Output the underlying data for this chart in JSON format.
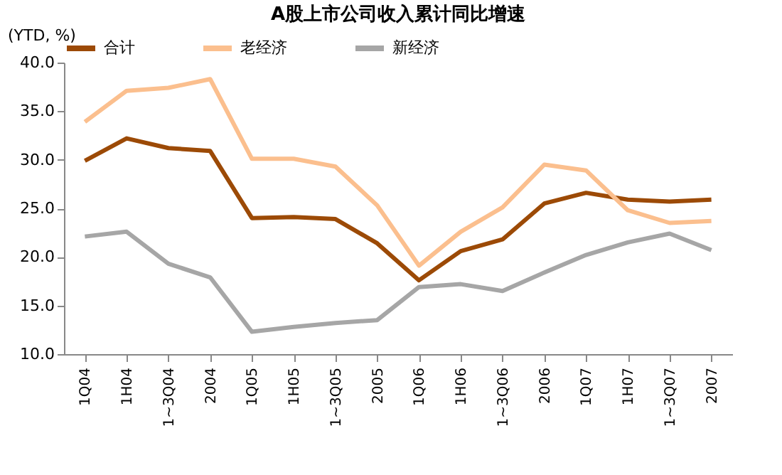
{
  "chart_data": {
    "type": "line",
    "title": "A股上市公司收入累计同比增速",
    "ylabel": "(YTD, %)",
    "categories": [
      "1Q04",
      "1H04",
      "1~3Q04",
      "2004",
      "1Q05",
      "1H05",
      "1~3Q05",
      "2005",
      "1Q06",
      "1H06",
      "1~3Q06",
      "2006",
      "1Q07",
      "1H07",
      "1~3Q07",
      "2007"
    ],
    "series": [
      {
        "name": "合计",
        "color": "#9c4a06",
        "values": [
          29.9,
          32.2,
          31.2,
          30.9,
          24.0,
          24.1,
          23.9,
          21.4,
          17.6,
          20.6,
          21.8,
          25.5,
          26.6,
          25.9,
          25.7,
          25.9
        ]
      },
      {
        "name": "老经济",
        "color": "#fbbf8e",
        "values": [
          33.9,
          37.1,
          37.4,
          38.3,
          30.1,
          30.1,
          29.3,
          25.3,
          19.1,
          22.6,
          25.1,
          29.5,
          28.9,
          24.8,
          23.5,
          23.7
        ]
      },
      {
        "name": "新经济",
        "color": "#a6a6a6",
        "values": [
          22.1,
          22.6,
          19.3,
          17.9,
          12.3,
          12.8,
          13.2,
          13.5,
          16.9,
          17.2,
          16.5,
          18.4,
          20.2,
          21.5,
          22.4,
          20.7
        ]
      }
    ],
    "ylim": [
      10,
      40
    ],
    "yticks": [
      {
        "value": 10,
        "label": "10.0"
      },
      {
        "value": 15,
        "label": "15.0"
      },
      {
        "value": 20,
        "label": "20.0"
      },
      {
        "value": 25,
        "label": "25.0"
      },
      {
        "value": 30,
        "label": "30.0"
      },
      {
        "value": 35,
        "label": "35.0"
      },
      {
        "value": 40,
        "label": "40.0"
      }
    ],
    "grid": false,
    "legend": "top",
    "marker": "none",
    "line_style": "solid"
  }
}
